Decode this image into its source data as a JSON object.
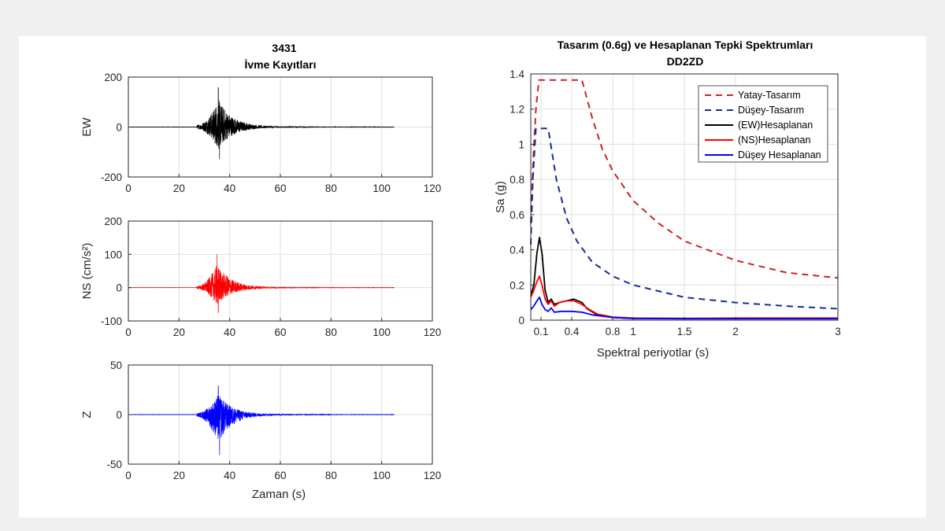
{
  "chart_data": [
    {
      "type": "line",
      "id": "ew",
      "title": "3431",
      "subtitle": "İvme Kayıtları",
      "ylabel": "EW",
      "xlim": [
        0,
        120
      ],
      "ylim": [
        -200,
        200
      ],
      "xticks": [
        0,
        20,
        40,
        60,
        80,
        100,
        120
      ],
      "yticks": [
        -200,
        0,
        200
      ],
      "grid": true,
      "series": [
        {
          "color": "#000000",
          "x_range": [
            0,
            105
          ],
          "event_start": 27,
          "peak_time": 35.5,
          "peak_pos": 158,
          "peak_neg": -128,
          "coda_end": 75
        }
      ]
    },
    {
      "type": "line",
      "id": "ns",
      "ylabel": "NS (cm/s²)",
      "xlim": [
        0,
        120
      ],
      "ylim": [
        -100,
        200
      ],
      "xticks": [
        0,
        20,
        40,
        60,
        80,
        100,
        120
      ],
      "yticks": [
        -100,
        0,
        100,
        200
      ],
      "grid": true,
      "series": [
        {
          "color": "#ff0000",
          "x_range": [
            0,
            105
          ],
          "event_start": 27,
          "peak_time": 35,
          "peak_pos": 100,
          "peak_neg": -75,
          "coda_end": 75
        }
      ]
    },
    {
      "type": "line",
      "id": "z",
      "ylabel": "Z",
      "xlabel": "Zaman (s)",
      "xlim": [
        0,
        120
      ],
      "ylim": [
        -50,
        50
      ],
      "xticks": [
        0,
        20,
        40,
        60,
        80,
        100,
        120
      ],
      "yticks": [
        -50,
        0,
        50
      ],
      "grid": true,
      "series": [
        {
          "color": "#0000ff",
          "x_range": [
            0,
            105
          ],
          "event_start": 27,
          "peak_time": 35.5,
          "peak_pos": 29,
          "peak_neg": -41,
          "coda_end": 80
        }
      ]
    },
    {
      "type": "line",
      "id": "spectrum",
      "title": "Tasarım (0.6g) ve Hesaplanan Tepki Spektrumları",
      "subtitle": "DD2ZD",
      "xlabel": "Spektral periyotlar (s)",
      "ylabel": "Sa (g)",
      "xlim": [
        0,
        3
      ],
      "ylim": [
        0,
        1.4
      ],
      "xticks": [
        0.1,
        0.4,
        0.8,
        1,
        1.5,
        2,
        3
      ],
      "xtick_labels": [
        "0.1",
        "0.4",
        "0.8",
        "1",
        "1.5",
        "2",
        "3"
      ],
      "yticks": [
        0,
        0.2,
        0.4,
        0.6,
        0.8,
        1,
        1.2,
        1.4
      ],
      "ytick_labels": [
        "0",
        "0.2",
        "0.4",
        "0.6",
        "0.8",
        "1",
        "1.2",
        "1.4"
      ],
      "grid": true,
      "legend_position": "top-right",
      "series": [
        {
          "name": "Yatay-Tasarım",
          "color": "#cc2222",
          "style": "dashed",
          "points": [
            [
              0,
              0.55
            ],
            [
              0.025,
              0.93
            ],
            [
              0.05,
              1.2
            ],
            [
              0.08,
              1.365
            ],
            [
              0.5,
              1.365
            ],
            [
              0.6,
              1.15
            ],
            [
              0.7,
              0.97
            ],
            [
              0.8,
              0.85
            ],
            [
              1.0,
              0.68
            ],
            [
              1.25,
              0.55
            ],
            [
              1.5,
              0.45
            ],
            [
              2.0,
              0.34
            ],
            [
              2.5,
              0.27
            ],
            [
              3.0,
              0.24
            ]
          ]
        },
        {
          "name": "Düşey-Tasarım",
          "color": "#1a2a9a",
          "style": "dashed",
          "points": [
            [
              0,
              0.43
            ],
            [
              0.02,
              0.8
            ],
            [
              0.05,
              1.09
            ],
            [
              0.17,
              1.09
            ],
            [
              0.25,
              0.8
            ],
            [
              0.35,
              0.58
            ],
            [
              0.45,
              0.45
            ],
            [
              0.6,
              0.33
            ],
            [
              0.8,
              0.25
            ],
            [
              1.0,
              0.2
            ],
            [
              1.5,
              0.13
            ],
            [
              2.0,
              0.1
            ],
            [
              2.5,
              0.08
            ],
            [
              3.0,
              0.065
            ]
          ]
        },
        {
          "name": "(EW)Hesaplanan",
          "color": "#000000",
          "style": "solid",
          "points": [
            [
              0,
              0.14
            ],
            [
              0.03,
              0.2
            ],
            [
              0.06,
              0.38
            ],
            [
              0.085,
              0.47
            ],
            [
              0.11,
              0.38
            ],
            [
              0.14,
              0.17
            ],
            [
              0.17,
              0.1
            ],
            [
              0.2,
              0.12
            ],
            [
              0.23,
              0.09
            ],
            [
              0.28,
              0.1
            ],
            [
              0.35,
              0.11
            ],
            [
              0.42,
              0.12
            ],
            [
              0.5,
              0.1
            ],
            [
              0.55,
              0.065
            ],
            [
              0.65,
              0.03
            ],
            [
              0.8,
              0.015
            ],
            [
              1.0,
              0.01
            ],
            [
              1.5,
              0.01
            ],
            [
              2.0,
              0.01
            ],
            [
              2.5,
              0.01
            ],
            [
              3.0,
              0.01
            ]
          ]
        },
        {
          "name": "(NS)Hesaplanan",
          "color": "#ff0000",
          "style": "solid",
          "points": [
            [
              0,
              0.13
            ],
            [
              0.03,
              0.17
            ],
            [
              0.06,
              0.22
            ],
            [
              0.085,
              0.25
            ],
            [
              0.11,
              0.2
            ],
            [
              0.14,
              0.12
            ],
            [
              0.17,
              0.09
            ],
            [
              0.2,
              0.11
            ],
            [
              0.23,
              0.08
            ],
            [
              0.28,
              0.1
            ],
            [
              0.35,
              0.11
            ],
            [
              0.42,
              0.11
            ],
            [
              0.5,
              0.09
            ],
            [
              0.56,
              0.065
            ],
            [
              0.65,
              0.035
            ],
            [
              0.8,
              0.018
            ],
            [
              1.0,
              0.012
            ],
            [
              1.5,
              0.01
            ],
            [
              2.0,
              0.012
            ],
            [
              2.5,
              0.012
            ],
            [
              3.0,
              0.012
            ]
          ]
        },
        {
          "name": "Düşey Hesaplanan",
          "color": "#0000ff",
          "style": "solid",
          "points": [
            [
              0,
              0.06
            ],
            [
              0.03,
              0.08
            ],
            [
              0.06,
              0.11
            ],
            [
              0.085,
              0.13
            ],
            [
              0.11,
              0.09
            ],
            [
              0.14,
              0.06
            ],
            [
              0.17,
              0.05
            ],
            [
              0.2,
              0.07
            ],
            [
              0.23,
              0.045
            ],
            [
              0.3,
              0.05
            ],
            [
              0.4,
              0.05
            ],
            [
              0.5,
              0.045
            ],
            [
              0.6,
              0.03
            ],
            [
              0.8,
              0.015
            ],
            [
              1.0,
              0.01
            ],
            [
              1.5,
              0.008
            ],
            [
              2.0,
              0.008
            ],
            [
              3.0,
              0.008
            ]
          ]
        }
      ]
    }
  ]
}
